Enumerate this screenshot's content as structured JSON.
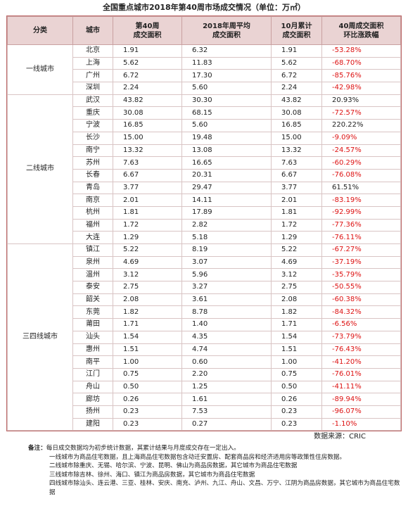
{
  "title": "全国重点城市2018年第40周市场成交情况（单位：万㎡）",
  "table": {
    "headers": [
      [
        "分类"
      ],
      [
        "城市"
      ],
      [
        "第40周",
        "成交面积"
      ],
      [
        "2018年周平均",
        "成交面积"
      ],
      [
        "10月累计",
        "成交面积"
      ],
      [
        "40周成交面积",
        "环比涨跌幅"
      ]
    ],
    "groups": [
      {
        "category": "一线城市",
        "rows": [
          [
            "北京",
            "1.91",
            "6.32",
            "1.91",
            "-53.28%"
          ],
          [
            "上海",
            "5.62",
            "11.83",
            "5.62",
            "-68.70%"
          ],
          [
            "广州",
            "6.72",
            "17.30",
            "6.72",
            "-85.76%"
          ],
          [
            "深圳",
            "2.24",
            "5.60",
            "2.24",
            "-42.98%"
          ]
        ]
      },
      {
        "category": "二线城市",
        "rows": [
          [
            "武汉",
            "43.82",
            "30.30",
            "43.82",
            "20.93%"
          ],
          [
            "重庆",
            "30.08",
            "68.15",
            "30.08",
            "-72.57%"
          ],
          [
            "宁波",
            "16.85",
            "5.60",
            "16.85",
            "220.22%"
          ],
          [
            "长沙",
            "15.00",
            "19.48",
            "15.00",
            "-9.09%"
          ],
          [
            "南宁",
            "13.32",
            "13.08",
            "13.32",
            "-24.57%"
          ],
          [
            "苏州",
            "7.63",
            "16.65",
            "7.63",
            "-60.29%"
          ],
          [
            "长春",
            "6.67",
            "20.31",
            "6.67",
            "-76.08%"
          ],
          [
            "青岛",
            "3.77",
            "29.47",
            "3.77",
            "61.51%"
          ],
          [
            "南京",
            "2.01",
            "14.11",
            "2.01",
            "-83.19%"
          ],
          [
            "杭州",
            "1.81",
            "17.89",
            "1.81",
            "-92.99%"
          ],
          [
            "福州",
            "1.72",
            "2.82",
            "1.72",
            "-77.36%"
          ],
          [
            "大连",
            "1.29",
            "5.18",
            "1.29",
            "-76.11%"
          ]
        ]
      },
      {
        "category": "三四线城市",
        "rows": [
          [
            "镇江",
            "5.22",
            "8.19",
            "5.22",
            "-67.27%"
          ],
          [
            "泉州",
            "4.69",
            "3.07",
            "4.69",
            "-37.19%"
          ],
          [
            "温州",
            "3.12",
            "5.96",
            "3.12",
            "-35.79%"
          ],
          [
            "泰安",
            "2.75",
            "3.27",
            "2.75",
            "-50.55%"
          ],
          [
            "韶关",
            "2.08",
            "3.61",
            "2.08",
            "-60.38%"
          ],
          [
            "东莞",
            "1.82",
            "8.78",
            "1.82",
            "-84.32%"
          ],
          [
            "莆田",
            "1.71",
            "1.40",
            "1.71",
            "-6.56%"
          ],
          [
            "汕头",
            "1.54",
            "4.35",
            "1.54",
            "-73.79%"
          ],
          [
            "惠州",
            "1.51",
            "4.74",
            "1.51",
            "-76.43%"
          ],
          [
            "南平",
            "1.00",
            "0.60",
            "1.00",
            "-41.20%"
          ],
          [
            "江门",
            "0.75",
            "2.20",
            "0.75",
            "-76.01%"
          ],
          [
            "舟山",
            "0.50",
            "1.25",
            "0.50",
            "-41.11%"
          ],
          [
            "廊坊",
            "0.26",
            "1.61",
            "0.26",
            "-89.94%"
          ],
          [
            "扬州",
            "0.23",
            "7.53",
            "0.23",
            "-96.07%"
          ],
          [
            "建阳",
            "0.23",
            "0.27",
            "0.23",
            "-1.10%"
          ]
        ]
      }
    ]
  },
  "source": "数据来源：CRIC",
  "notes_label": "备注：",
  "notes": [
    "每日成交数据均为初步统计数据，其累计结果与月度成交存在一定出入。",
    "一线城市为商品住宅数据，且上海商品住宅数据包含动迁安置房、配套商品房和经济适用房等政策性住房数据。",
    "二线城市除重庆、无锡、哈尔滨、宁波、昆明、佛山为商品房数据，其它城市为商品住宅数据",
    "三线城市除吉林、徐州、海口、镇江为商品房数据，其它城市为商品住宅数据",
    "四线城市除汕头、连云港、三亚、桂林、安庆、南充、泸州、九江、舟山、文昌、万宁、江阴为商品房数据，其它城市为商品住宅数据"
  ]
}
